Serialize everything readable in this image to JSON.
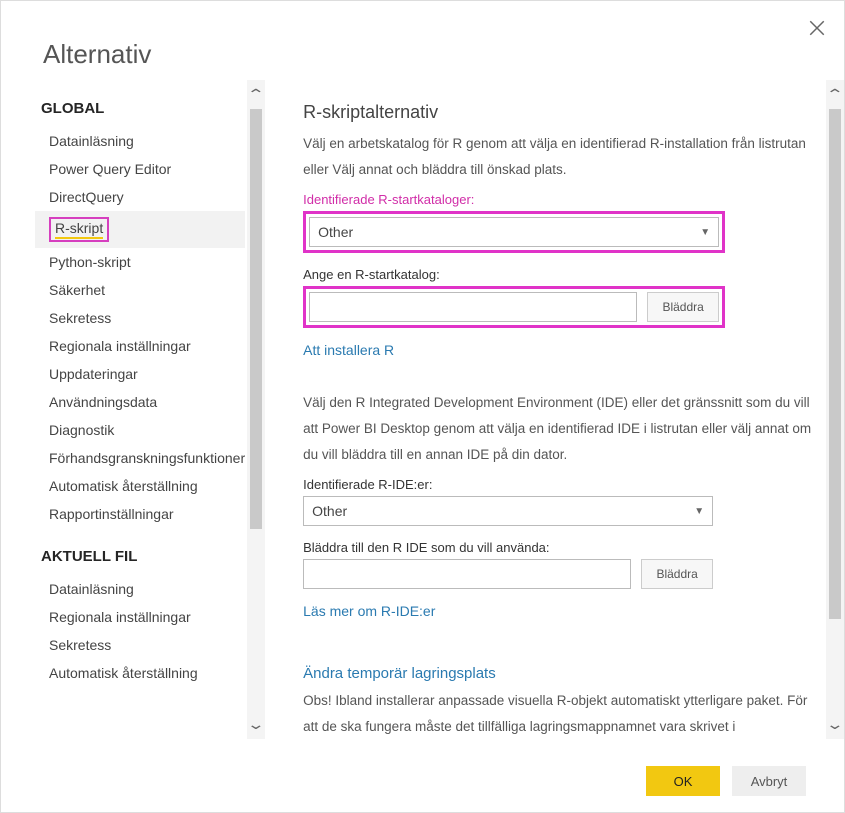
{
  "dialog": {
    "title": "Alternativ",
    "close_icon": "✕"
  },
  "sidebar": {
    "groups": [
      {
        "label": "GLOBAL",
        "items": [
          {
            "label": "Datainläsning",
            "selected": false,
            "highlight": false
          },
          {
            "label": "Power Query Editor",
            "selected": false,
            "highlight": false
          },
          {
            "label": "DirectQuery",
            "selected": false,
            "highlight": false
          },
          {
            "label": "R-skript",
            "selected": true,
            "highlight": true
          },
          {
            "label": "Python-skript",
            "selected": false,
            "highlight": false
          },
          {
            "label": "Säkerhet",
            "selected": false,
            "highlight": false
          },
          {
            "label": "Sekretess",
            "selected": false,
            "highlight": false
          },
          {
            "label": "Regionala inställningar",
            "selected": false,
            "highlight": false
          },
          {
            "label": "Uppdateringar",
            "selected": false,
            "highlight": false
          },
          {
            "label": "Användningsdata",
            "selected": false,
            "highlight": false
          },
          {
            "label": "Diagnostik",
            "selected": false,
            "highlight": false
          },
          {
            "label": "Förhandsgranskningsfunktioner",
            "selected": false,
            "highlight": false
          },
          {
            "label": "Automatisk återställning",
            "selected": false,
            "highlight": false
          },
          {
            "label": "Rapportinställningar",
            "selected": false,
            "highlight": false
          }
        ]
      },
      {
        "label": "AKTUELL FIL",
        "items": [
          {
            "label": "Datainläsning",
            "selected": false,
            "highlight": false
          },
          {
            "label": "Regionala inställningar",
            "selected": false,
            "highlight": false
          },
          {
            "label": "Sekretess",
            "selected": false,
            "highlight": false
          },
          {
            "label": "Automatisk återställning",
            "selected": false,
            "highlight": false
          }
        ]
      }
    ]
  },
  "main": {
    "section_title": "R-skriptalternativ",
    "desc1": "Välj en arbetskatalog för R genom att välja en identifierad R-installation från listrutan eller Välj annat och bläddra till önskad plats.",
    "field1_label": "Identifierade R-startkataloger:",
    "field1_value": "Other",
    "field2_label": "Ange en R-startkatalog:",
    "field2_value": "",
    "browse1_label": "Bläddra",
    "link1": "Att installera R",
    "desc2": "Välj den R Integrated Development Environment (IDE) eller det gränssnitt som du vill att Power BI Desktop genom att välja en identifierad IDE i listrutan eller välj annat om du vill bläddra till en annan IDE på din dator.",
    "field3_label": "Identifierade R-IDE:er:",
    "field3_value": "Other",
    "field4_label": "Bläddra till den R IDE som du vill använda:",
    "field4_value": "",
    "browse2_label": "Bläddra",
    "link2": "Läs mer om R-IDE:er",
    "section2_link": "Ändra temporär lagringsplats",
    "desc3": "Obs! Ibland installerar anpassade visuella R-objekt automatiskt ytterligare paket. För att de ska fungera måste det tillfälliga lagringsmappnamnet vara skrivet i"
  },
  "footer": {
    "ok": "OK",
    "cancel": "Avbryt"
  },
  "colors": {
    "highlight_border": "#e033c8",
    "primary_yellow": "#f2c811",
    "link_blue": "#2a7ab0"
  }
}
